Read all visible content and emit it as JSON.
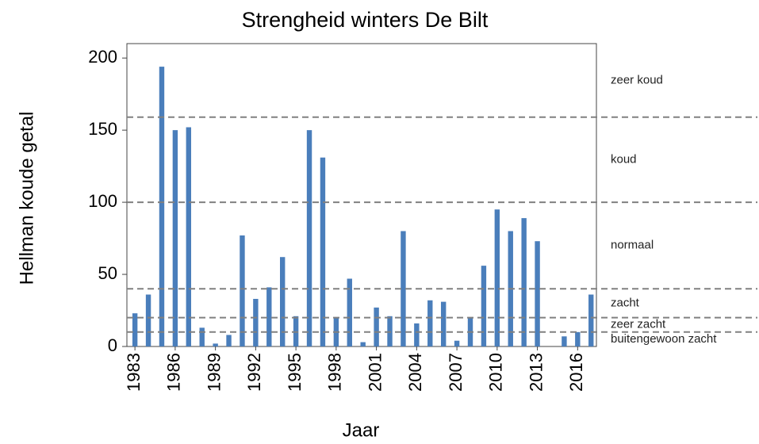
{
  "chart_data": {
    "type": "bar",
    "title": "Strengheid winters De Bilt",
    "x_label": "Jaar",
    "y_label": "Hellman koude getal",
    "x": [
      1983,
      1984,
      1985,
      1986,
      1987,
      1988,
      1989,
      1990,
      1991,
      1992,
      1993,
      1994,
      1995,
      1996,
      1997,
      1998,
      1999,
      2000,
      2001,
      2002,
      2003,
      2004,
      2005,
      2006,
      2007,
      2008,
      2009,
      2010,
      2011,
      2012,
      2013,
      2014,
      2015,
      2016,
      2017
    ],
    "values": [
      23,
      36,
      194,
      150,
      152,
      13,
      2,
      8,
      77,
      33,
      41,
      62,
      21,
      150,
      131,
      20,
      47,
      3,
      27,
      21,
      80,
      16,
      32,
      31,
      4,
      20,
      56,
      95,
      80,
      89,
      73,
      0,
      7,
      10,
      36
    ],
    "color": "#4a7ebb",
    "xlim": [
      1982.4,
      2017.4
    ],
    "xticks": [
      1983,
      1986,
      1989,
      1992,
      1995,
      1998,
      2001,
      2004,
      2007,
      2010,
      2013,
      2016
    ],
    "ylim": [
      0,
      210
    ],
    "yticks": [
      0,
      50,
      100,
      150,
      200
    ],
    "thresholds": [
      10,
      20,
      40,
      100,
      159
    ],
    "zones": [
      "buitengewoon zacht",
      "zeer zacht",
      "zacht",
      "normaal",
      "koud",
      "zeer koud"
    ]
  }
}
